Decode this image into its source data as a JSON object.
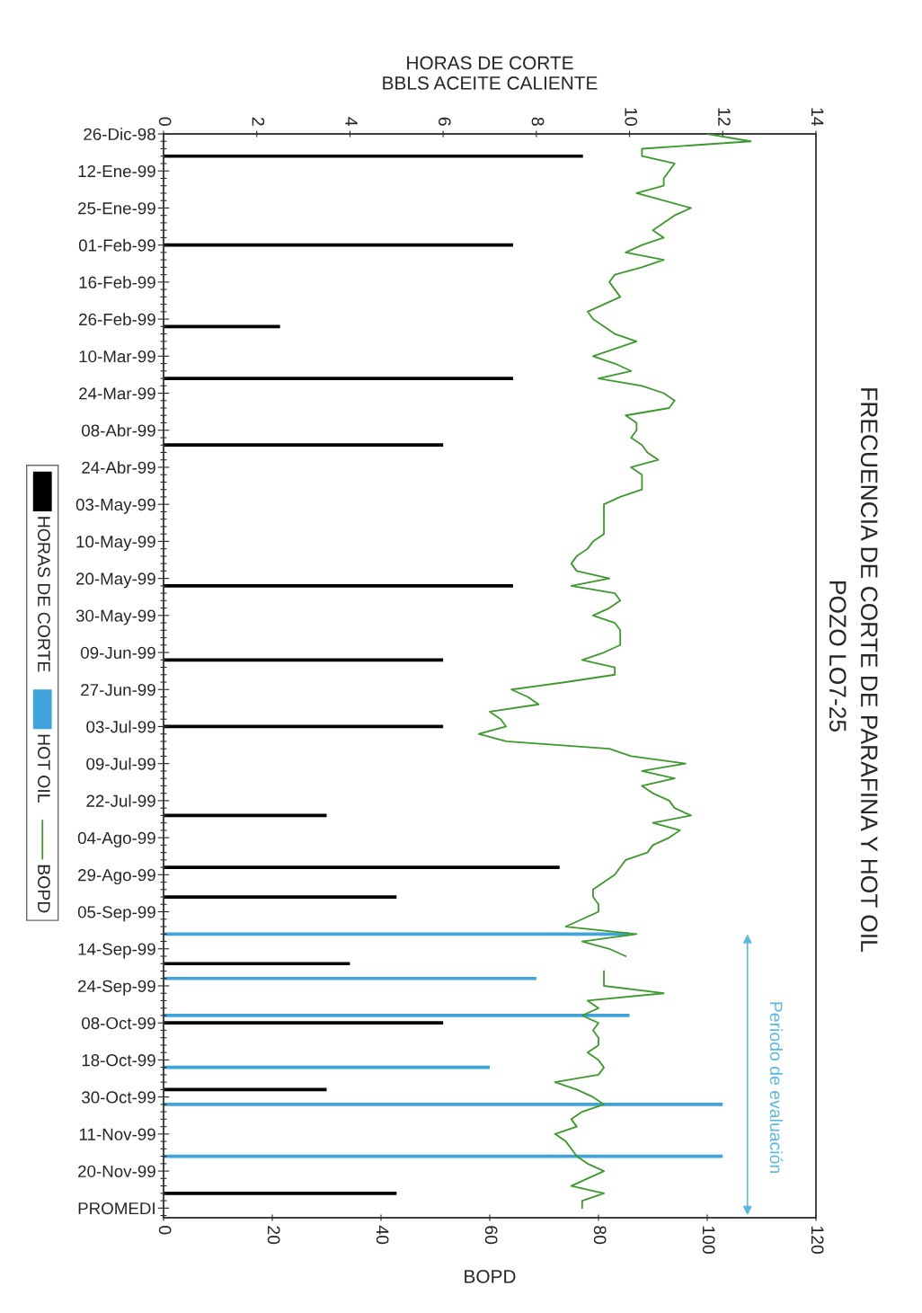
{
  "chart_data": {
    "type": "bar",
    "orientation": "horizontal",
    "title": "FRECUENCIA DE CORTE DE PARAFINA Y HOT OIL",
    "subtitle": "POZO LO7-25",
    "x2label": "HORAS DE CORTE\nBBLS ACEITE CALIENTE",
    "xlabel": "BOPD",
    "annotations": [
      "Periodo de evaluación"
    ],
    "categories": [
      "26-Dic-98",
      null,
      null,
      null,
      null,
      "12-Ene-99",
      null,
      null,
      null,
      null,
      "25-Ene-99",
      null,
      null,
      null,
      null,
      "01-Feb-99",
      null,
      null,
      null,
      null,
      "16-Feb-99",
      null,
      null,
      null,
      null,
      "26-Feb-99",
      null,
      null,
      null,
      null,
      "10-Mar-99",
      null,
      null,
      null,
      null,
      "24-Mar-99",
      null,
      null,
      null,
      null,
      "08-Abr-99",
      null,
      null,
      null,
      null,
      "24-Abr-99",
      null,
      null,
      null,
      null,
      "03-May-99",
      null,
      null,
      null,
      null,
      "10-May-99",
      null,
      null,
      null,
      null,
      "20-May-99",
      null,
      null,
      null,
      null,
      "30-May-99",
      null,
      null,
      null,
      null,
      "09-Jun-99",
      null,
      null,
      null,
      null,
      "27-Jun-99",
      null,
      null,
      null,
      null,
      "03-Jul-99",
      null,
      null,
      null,
      null,
      "09-Jul-99",
      null,
      null,
      null,
      null,
      "22-Jul-99",
      null,
      null,
      null,
      null,
      "04-Ago-99",
      null,
      null,
      null,
      null,
      "29-Ago-99",
      null,
      null,
      null,
      null,
      "05-Sep-99",
      null,
      null,
      null,
      null,
      "14-Sep-99",
      null,
      null,
      null,
      null,
      "24-Sep-99",
      null,
      null,
      null,
      null,
      "08-Oct-99",
      null,
      null,
      null,
      null,
      "18-Oct-99",
      null,
      null,
      null,
      null,
      "30-Oct-99",
      null,
      null,
      null,
      null,
      "11-Nov-99",
      null,
      null,
      null,
      null,
      "20-Nov-99",
      null,
      null,
      null,
      null,
      "PROMEDI",
      null
    ],
    "xlim": [
      0,
      120
    ],
    "xticks": [
      0,
      20,
      40,
      60,
      80,
      100,
      120
    ],
    "x2lim": [
      0,
      14
    ],
    "x2ticks": [
      0,
      2,
      4,
      6,
      8,
      10,
      12,
      14
    ],
    "legend": "left",
    "grid": false,
    "series": [
      {
        "name": "HORAS DE CORTE",
        "axis": "x2",
        "color": "#000000",
        "values": [
          null,
          null,
          null,
          9,
          null,
          null,
          null,
          null,
          null,
          null,
          null,
          null,
          null,
          null,
          null,
          7.5,
          null,
          null,
          null,
          null,
          null,
          null,
          null,
          null,
          null,
          null,
          2.5,
          null,
          null,
          null,
          null,
          null,
          null,
          7.5,
          null,
          null,
          null,
          null,
          null,
          null,
          null,
          null,
          6,
          null,
          null,
          null,
          null,
          null,
          null,
          null,
          null,
          null,
          null,
          null,
          null,
          null,
          null,
          null,
          null,
          null,
          null,
          7.5,
          null,
          null,
          null,
          null,
          null,
          null,
          null,
          null,
          null,
          6,
          null,
          null,
          null,
          null,
          null,
          null,
          null,
          null,
          6,
          null,
          null,
          null,
          null,
          null,
          null,
          null,
          null,
          null,
          null,
          null,
          3.5,
          null,
          null,
          null,
          null,
          null,
          null,
          8.5,
          null,
          null,
          null,
          5,
          null,
          null,
          null,
          null,
          null,
          null,
          null,
          null,
          4,
          null,
          null,
          null,
          null,
          null,
          null,
          null,
          6,
          null,
          null,
          null,
          null,
          null,
          null,
          null,
          null,
          3.5,
          null,
          null,
          null,
          null,
          null,
          null,
          null,
          null,
          null,
          null,
          null,
          null,
          null,
          5,
          null,
          null,
          null
        ]
      },
      {
        "name": "HOT OIL",
        "axis": "x2",
        "color": "#3fa3dc",
        "values": [
          null,
          null,
          null,
          null,
          null,
          null,
          null,
          null,
          null,
          null,
          null,
          null,
          null,
          null,
          null,
          null,
          null,
          null,
          null,
          null,
          null,
          null,
          null,
          null,
          null,
          null,
          null,
          null,
          null,
          null,
          null,
          null,
          null,
          null,
          null,
          null,
          null,
          null,
          null,
          null,
          null,
          null,
          null,
          null,
          null,
          null,
          null,
          null,
          null,
          null,
          null,
          null,
          null,
          null,
          null,
          null,
          null,
          null,
          null,
          null,
          null,
          null,
          null,
          null,
          null,
          null,
          null,
          null,
          null,
          null,
          null,
          null,
          null,
          null,
          null,
          null,
          null,
          null,
          null,
          null,
          null,
          null,
          null,
          null,
          null,
          null,
          null,
          null,
          null,
          null,
          null,
          null,
          null,
          null,
          null,
          null,
          null,
          null,
          null,
          null,
          null,
          null,
          null,
          null,
          null,
          null,
          null,
          null,
          10,
          null,
          null,
          null,
          null,
          null,
          8,
          null,
          null,
          null,
          null,
          10,
          null,
          null,
          null,
          null,
          null,
          null,
          7,
          null,
          null,
          null,
          null,
          12,
          null,
          null,
          null,
          null,
          null,
          null,
          12,
          null,
          null,
          null,
          null,
          null,
          null,
          null,
          null
        ]
      },
      {
        "name": "BOPD",
        "type": "line",
        "color": "#3c9a2c",
        "values": [
          100,
          108,
          88,
          88,
          94,
          93,
          92,
          92,
          87,
          92,
          97,
          94,
          92,
          90,
          92,
          88,
          85,
          92,
          88,
          83,
          82,
          83,
          84,
          81,
          78,
          79,
          81,
          83,
          87,
          83,
          79,
          83,
          86,
          80,
          88,
          92,
          94,
          93,
          85,
          87,
          87,
          86,
          88,
          89,
          91,
          86,
          88,
          88,
          88,
          84,
          81,
          81,
          81,
          81,
          81,
          79,
          78,
          76,
          75,
          76,
          82,
          75,
          83,
          84,
          82,
          79,
          83,
          84,
          84,
          84,
          81,
          77,
          83,
          83,
          74,
          64,
          67,
          69,
          60,
          62,
          63,
          58,
          63,
          82,
          86,
          96,
          88,
          94,
          88,
          90,
          93,
          94,
          97,
          90,
          95,
          93,
          90,
          89,
          85,
          84,
          83,
          81,
          79,
          79,
          80,
          80,
          77,
          74,
          87,
          77,
          82,
          85,
          null,
          81,
          81,
          81,
          92,
          78,
          80,
          77,
          80,
          79,
          80,
          80,
          78,
          80,
          81,
          80,
          72,
          76,
          79,
          81,
          77,
          75,
          76,
          72,
          74,
          75,
          76,
          78,
          81,
          78,
          75,
          81,
          77,
          77,
          null
        ]
      }
    ]
  }
}
